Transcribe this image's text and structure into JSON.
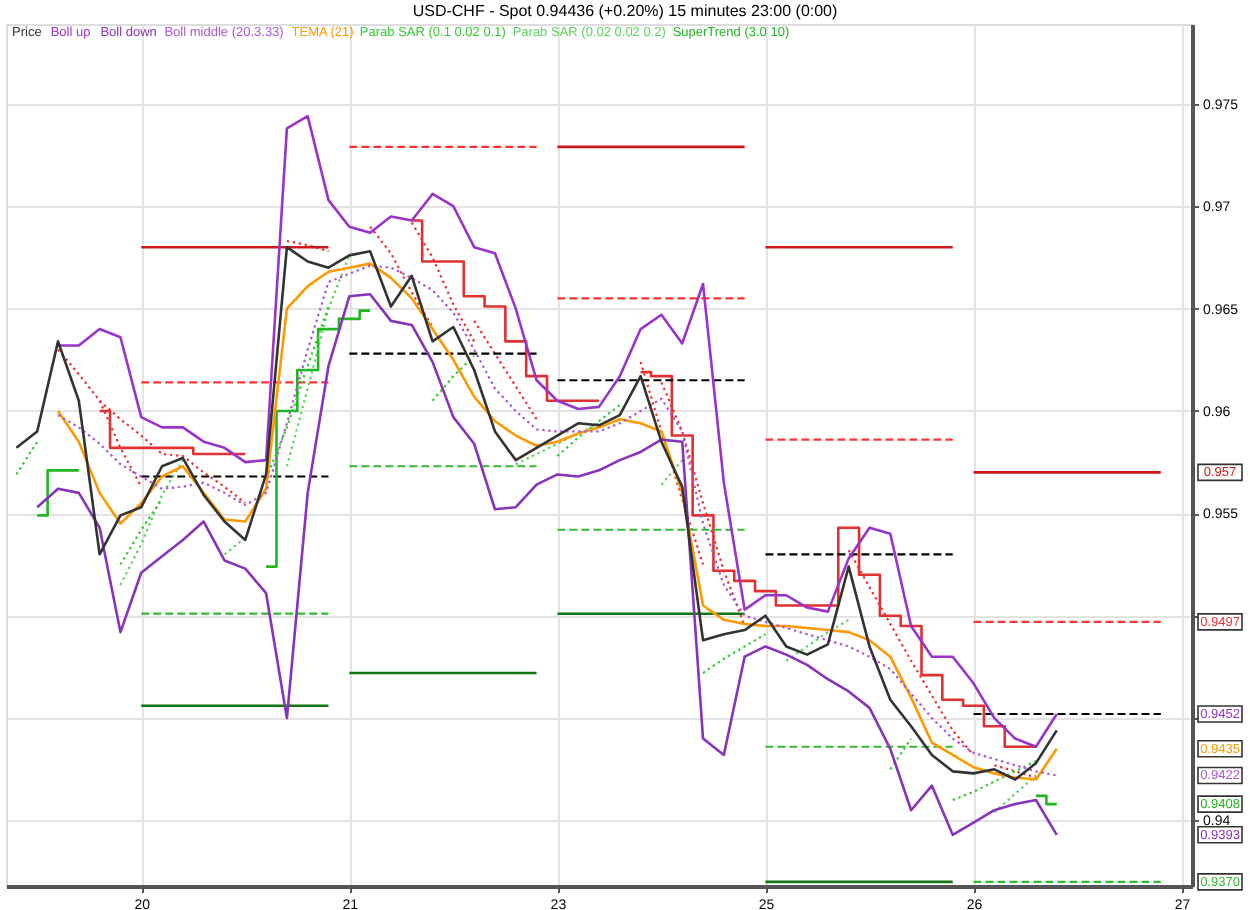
{
  "chart_data": {
    "type": "line",
    "title": "USD-CHF - Spot 0.94436 (+0.20%) 15 minutes 23:00 (0:00)",
    "categories": [
      null,
      null,
      null,
      null,
      null,
      null,
      "20",
      null,
      null,
      null,
      null,
      null,
      null,
      null,
      null,
      null,
      "21",
      null,
      null,
      null,
      null,
      null,
      null,
      null,
      null,
      null,
      "23",
      null,
      null,
      null,
      null,
      null,
      null,
      null,
      null,
      null,
      "25",
      null,
      null,
      null,
      null,
      null,
      null,
      null,
      null,
      null,
      "26",
      null,
      null,
      null,
      null,
      null,
      null,
      null,
      null,
      null,
      "27"
    ],
    "ylim": [
      0.9368,
      0.9789
    ],
    "yticks": [
      0.975,
      0.97,
      0.965,
      0.96,
      0.955,
      {
        "value": 0.95,
        "label": null
      },
      {
        "value": 0.945,
        "label": null
      },
      0.94
    ],
    "grid": true,
    "legend": "top left",
    "annotations": [
      {
        "text": "0.957",
        "y": 0.957
      },
      {
        "text": "0.9497",
        "y": 0.9497
      },
      {
        "text": "0.9452",
        "y": 0.9452
      },
      {
        "text": "0.9435",
        "y": 0.9435
      },
      {
        "text": "0.9422",
        "y": 0.9422
      },
      {
        "text": "0.9408",
        "y": 0.9408
      },
      {
        "text": "0.9393",
        "y": 0.9393
      },
      {
        "text": "0.9370",
        "y": 0.937
      }
    ],
    "series": [
      {
        "name": "Price",
        "color": "#333333",
        "line_style": "solid",
        "values": [
          0.9582,
          0.959,
          0.9634,
          0.9605,
          0.953,
          0.9549,
          0.9553,
          0.9573,
          0.9577,
          0.9559,
          0.9546,
          0.9537,
          0.9569,
          0.968,
          0.9673,
          0.967,
          0.9676,
          0.9678,
          0.9651,
          0.9666,
          0.9634,
          0.9641,
          0.962,
          0.959,
          0.9576,
          0.9582,
          0.9588,
          0.9594,
          0.9593,
          0.9598,
          0.9617,
          0.9585,
          0.9563,
          0.9488,
          0.9491,
          0.9493,
          0.95,
          0.9485,
          0.9481,
          0.9486,
          0.9524,
          0.9485,
          0.9459,
          0.9446,
          0.9432,
          0.9424,
          0.9423,
          0.9425,
          0.942,
          0.9428,
          0.9444,
          null,
          null,
          null,
          null,
          null,
          null
        ]
      },
      {
        "name": "Boll up",
        "color": "#9933cc",
        "line_style": "solid",
        "values": [
          null,
          null,
          0.9632,
          0.9632,
          0.964,
          0.9636,
          0.9597,
          0.9592,
          0.9592,
          0.9585,
          0.9582,
          0.9575,
          0.9576,
          0.9738,
          0.9744,
          0.9703,
          0.969,
          0.9687,
          0.9695,
          0.9693,
          0.9706,
          0.97,
          0.968,
          0.9677,
          0.965,
          0.9615,
          0.9605,
          0.9601,
          0.9602,
          0.9617,
          0.964,
          0.9647,
          0.9633,
          0.9662,
          0.9565,
          0.9503,
          0.951,
          0.951,
          0.9504,
          0.9502,
          0.9528,
          0.9543,
          0.954,
          0.9495,
          0.948,
          0.948,
          0.9467,
          0.945,
          0.944,
          0.9436,
          0.9452,
          null,
          null,
          null,
          null,
          null,
          null
        ]
      },
      {
        "name": "Boll down",
        "color": "#8833bb",
        "line_style": "solid",
        "values": [
          null,
          0.9553,
          0.9562,
          0.956,
          0.9543,
          0.9492,
          0.9521,
          0.9529,
          0.9537,
          0.9546,
          0.9527,
          0.9523,
          0.9511,
          0.945,
          0.956,
          0.9622,
          0.9656,
          0.9657,
          0.9644,
          0.9642,
          0.9624,
          0.9597,
          0.9584,
          0.9552,
          0.9553,
          0.9564,
          0.9569,
          0.9568,
          0.9571,
          0.9576,
          0.958,
          0.9586,
          0.9585,
          0.944,
          0.9432,
          0.948,
          0.9485,
          0.9481,
          0.9476,
          0.9469,
          0.9463,
          0.9455,
          0.9435,
          0.9405,
          0.9417,
          0.9393,
          0.9399,
          0.9405,
          0.9408,
          0.941,
          0.9393,
          null,
          null,
          null,
          null,
          null,
          null
        ]
      },
      {
        "name": "Boll middle (20.3.33)",
        "color": "#aa55dd",
        "line_style": "dotted",
        "values": [
          null,
          null,
          0.9598,
          0.9592,
          0.9584,
          0.9574,
          0.9568,
          0.9562,
          0.9563,
          0.9565,
          0.956,
          0.9554,
          0.956,
          0.9594,
          0.963,
          0.9663,
          0.9667,
          0.9671,
          0.967,
          0.9665,
          0.9659,
          0.9648,
          0.963,
          0.9611,
          0.96,
          0.9591,
          0.959,
          0.959,
          0.959,
          0.9594,
          0.96,
          0.9606,
          0.959,
          0.9545,
          0.9515,
          0.95,
          0.9497,
          0.9494,
          0.9491,
          0.9488,
          0.9485,
          0.948,
          0.9474,
          0.9462,
          0.945,
          0.944,
          0.9433,
          0.943,
          0.9427,
          0.9424,
          0.9422,
          null,
          null,
          null,
          null,
          null,
          null
        ]
      },
      {
        "name": "TEMA (21)",
        "color": "#ff9900",
        "line_style": "solid",
        "values": [
          null,
          null,
          0.96,
          0.9585,
          0.956,
          0.9545,
          0.9555,
          0.9568,
          0.9573,
          0.956,
          0.9547,
          0.9546,
          0.9562,
          0.965,
          0.9661,
          0.9668,
          0.967,
          0.9672,
          0.9665,
          0.9655,
          0.964,
          0.9625,
          0.9607,
          0.9595,
          0.9588,
          0.9583,
          0.9585,
          0.9589,
          0.9592,
          0.9596,
          0.9594,
          0.959,
          0.956,
          0.9505,
          0.9498,
          0.9496,
          0.9495,
          0.9495,
          0.9494,
          0.9493,
          0.9492,
          0.9488,
          0.948,
          0.946,
          0.9438,
          0.9432,
          0.9426,
          0.9423,
          0.9421,
          0.942,
          0.9435,
          null,
          null,
          null,
          null,
          null,
          null
        ]
      },
      {
        "name": "Parab SAR (0.1 0.02 0.1)",
        "color": "#33cc33",
        "line_style": "dotted",
        "values": [
          0.9569,
          0.9585,
          null,
          null,
          null,
          0.9525,
          0.9542,
          0.9557,
          null,
          null,
          null,
          null,
          0.9567,
          0.9592,
          0.9622,
          0.9651,
          null,
          null,
          null,
          null,
          0.9605,
          0.9617,
          0.9627,
          null,
          null,
          null,
          0.9578,
          0.9587,
          0.9595,
          0.9603,
          null,
          null,
          null,
          0.9472,
          0.9479,
          0.9485,
          0.9491,
          null,
          null,
          null,
          null,
          null,
          0.9425,
          0.944,
          null,
          0.941,
          0.9414,
          0.9419,
          0.9424,
          0.9429,
          null,
          null,
          null,
          null,
          null,
          null,
          null
        ]
      },
      {
        "name": "Parab SAR (0.02 0.02 0.2)",
        "color": "#5fd35f",
        "line_style": "dotted",
        "values": [
          null,
          null,
          null,
          null,
          null,
          0.9515,
          0.9535,
          0.9559,
          0.9576,
          null,
          0.953,
          0.9538,
          null,
          0.9573,
          0.9611,
          0.965,
          0.9676,
          null,
          null,
          null,
          null,
          null,
          null,
          null,
          0.9574,
          0.9579,
          0.9584,
          0.9589,
          0.9594,
          null,
          null,
          0.9564,
          0.9576,
          null,
          null,
          null,
          null,
          0.9478,
          0.9485,
          0.9492,
          0.9498,
          null,
          null,
          null,
          null,
          null,
          null,
          0.9404,
          0.9413,
          0.9422,
          null,
          null,
          null,
          null,
          null,
          null,
          null
        ]
      },
      {
        "name": "SuperTrend (3.0 10)",
        "type": "step",
        "color": "#22b522",
        "line_style": "solid",
        "values": [
          null,
          0.9549,
          0.9571,
          0.9571,
          null,
          null,
          null,
          null,
          null,
          null,
          null,
          null,
          0.9524,
          0.96,
          0.962,
          0.964,
          0.9645,
          0.9649,
          null,
          null,
          null,
          null,
          null,
          null,
          null,
          null,
          null,
          null,
          null,
          null,
          null,
          null,
          null,
          null,
          null,
          null,
          null,
          null,
          null,
          null,
          null,
          null,
          null,
          null,
          null,
          null,
          null,
          null,
          null,
          0.9412,
          0.9408,
          null,
          null,
          null,
          null,
          null,
          null
        ]
      },
      {
        "type": "step",
        "color": "#e03030",
        "line_style": "solid",
        "values": [
          null,
          null,
          null,
          null,
          0.96,
          0.9582,
          0.9582,
          0.9582,
          0.9582,
          0.9579,
          0.9579,
          0.9579,
          null,
          null,
          null,
          null,
          null,
          null,
          null,
          0.9693,
          0.9673,
          0.9673,
          0.9656,
          0.9651,
          0.9634,
          0.9617,
          0.9605,
          0.9605,
          0.9605,
          null,
          0.9619,
          0.9617,
          0.9588,
          0.9549,
          0.9522,
          0.9517,
          0.9512,
          0.9505,
          0.9505,
          0.9505,
          0.9543,
          0.952,
          0.95,
          0.9495,
          0.9471,
          0.9459,
          0.9456,
          0.9446,
          0.9436,
          0.9436,
          null,
          null,
          null,
          null,
          null,
          null,
          null
        ]
      },
      {
        "color": "#ee3333",
        "line_style": "dotted",
        "values": [
          null,
          null,
          0.963,
          0.9618,
          0.9605,
          0.9582,
          0.9563,
          null,
          null,
          null,
          null,
          null,
          null,
          null,
          null,
          null,
          null,
          0.969,
          0.9677,
          0.9658,
          0.9641,
          null,
          0.9644,
          0.9628,
          0.9612,
          0.9596,
          null,
          null,
          null,
          null,
          0.9624,
          0.959,
          0.9557,
          0.9525,
          null,
          null,
          null,
          null,
          null,
          null,
          0.9532,
          0.9514,
          0.9496,
          0.9478,
          0.9461,
          0.9444,
          0.9432,
          null,
          null,
          null,
          null,
          null,
          null,
          null,
          null,
          null,
          null
        ]
      },
      {
        "color": "#ee3333",
        "line_style": "dotted",
        "values": [
          null,
          null,
          null,
          null,
          0.9605,
          0.9596,
          0.9588,
          0.9579,
          0.9578,
          0.957,
          0.9563,
          0.9555,
          null,
          0.9683,
          0.9681,
          0.9678,
          null,
          null,
          null,
          0.9692,
          0.9675,
          0.9652,
          0.9634,
          null,
          null,
          null,
          null,
          null,
          null,
          null,
          null,
          0.9614,
          0.959,
          0.9555,
          0.9522,
          0.9495,
          null,
          null,
          null,
          null,
          null,
          null,
          null,
          null,
          null,
          null,
          null,
          0.9427,
          0.9424,
          0.9421,
          null,
          null,
          null,
          null,
          null,
          null,
          null
        ]
      },
      {
        "color": "#d01818",
        "line_style": "solid",
        "values": [
          null,
          null,
          null,
          null,
          null,
          null,
          0.968,
          0.968,
          0.968,
          0.968,
          0.968,
          0.968,
          0.968,
          0.968,
          0.968,
          0.968,
          null,
          null,
          null,
          null,
          null,
          null,
          null,
          null,
          null,
          null,
          0.9729,
          0.9729,
          0.9729,
          0.9729,
          0.9729,
          0.9729,
          0.9729,
          0.9729,
          0.9729,
          0.9729,
          null,
          null,
          null,
          null,
          null,
          null,
          null,
          null,
          null,
          null,
          0.957,
          0.957,
          0.957,
          0.957,
          0.957,
          0.957,
          0.957,
          0.957,
          0.957,
          0.957,
          null
        ]
      },
      {
        "color": "#d01818",
        "line_style": "solid",
        "values": [
          null,
          null,
          null,
          null,
          null,
          null,
          null,
          null,
          null,
          null,
          null,
          null,
          null,
          null,
          null,
          null,
          null,
          null,
          null,
          null,
          null,
          null,
          null,
          null,
          null,
          null,
          null,
          null,
          null,
          null,
          null,
          null,
          null,
          null,
          null,
          null,
          0.968,
          0.968,
          0.968,
          0.968,
          0.968,
          0.968,
          0.968,
          0.968,
          0.968,
          0.968,
          null,
          null,
          null,
          null,
          null,
          null,
          null,
          null,
          null,
          null,
          null
        ]
      },
      {
        "color": "#ff3333",
        "line_style": "dashed",
        "values": [
          null,
          null,
          null,
          null,
          null,
          null,
          0.9614,
          0.9614,
          0.9614,
          0.9614,
          0.9614,
          0.9614,
          0.9614,
          0.9614,
          0.9614,
          0.9614,
          null,
          null,
          null,
          null,
          null,
          null,
          null,
          null,
          null,
          null,
          0.9655,
          0.9655,
          0.9655,
          0.9655,
          0.9655,
          0.9655,
          0.9655,
          0.9655,
          0.9655,
          0.9655,
          null,
          null,
          null,
          null,
          null,
          null,
          null,
          null,
          null,
          null,
          0.9497,
          0.9497,
          0.9497,
          0.9497,
          0.9497,
          0.9497,
          0.9497,
          0.9497,
          0.9497,
          0.9497,
          null
        ]
      },
      {
        "color": "#ff3333",
        "line_style": "dashed",
        "values": [
          null,
          null,
          null,
          null,
          null,
          null,
          null,
          null,
          null,
          null,
          null,
          null,
          null,
          null,
          null,
          null,
          0.9729,
          0.9729,
          0.9729,
          0.9729,
          0.9729,
          0.9729,
          0.9729,
          0.9729,
          0.9729,
          0.9729,
          null,
          null,
          null,
          null,
          null,
          null,
          null,
          null,
          null,
          null,
          0.9586,
          0.9586,
          0.9586,
          0.9586,
          0.9586,
          0.9586,
          0.9586,
          0.9586,
          0.9586,
          0.9586,
          null,
          null,
          null,
          null,
          null,
          null,
          null,
          null,
          null,
          null,
          null
        ]
      },
      {
        "color": "#000000",
        "line_style": "dashed",
        "values": [
          null,
          null,
          null,
          null,
          null,
          null,
          0.9568,
          0.9568,
          0.9568,
          0.9568,
          0.9568,
          0.9568,
          0.9568,
          0.9568,
          0.9568,
          0.9568,
          null,
          null,
          null,
          null,
          null,
          null,
          null,
          null,
          null,
          null,
          0.9615,
          0.9615,
          0.9615,
          0.9615,
          0.9615,
          0.9615,
          0.9615,
          0.9615,
          0.9615,
          0.9615,
          null,
          null,
          null,
          null,
          null,
          null,
          null,
          null,
          null,
          null,
          0.9452,
          0.9452,
          0.9452,
          0.9452,
          0.9452,
          0.9452,
          0.9452,
          0.9452,
          0.9452,
          0.9452,
          null
        ]
      },
      {
        "color": "#000000",
        "line_style": "dashed",
        "values": [
          null,
          null,
          null,
          null,
          null,
          null,
          null,
          null,
          null,
          null,
          null,
          null,
          null,
          null,
          null,
          null,
          0.9628,
          0.9628,
          0.9628,
          0.9628,
          0.9628,
          0.9628,
          0.9628,
          0.9628,
          0.9628,
          0.9628,
          null,
          null,
          null,
          null,
          null,
          null,
          null,
          null,
          null,
          null,
          0.953,
          0.953,
          0.953,
          0.953,
          0.953,
          0.953,
          0.953,
          0.953,
          0.953,
          0.953,
          null,
          null,
          null,
          null,
          null,
          null,
          null,
          null,
          null,
          null,
          null
        ]
      },
      {
        "color": "#33bb33",
        "line_style": "dashed",
        "values": [
          null,
          null,
          null,
          null,
          null,
          null,
          0.9501,
          0.9501,
          0.9501,
          0.9501,
          0.9501,
          0.9501,
          0.9501,
          0.9501,
          0.9501,
          0.9501,
          null,
          null,
          null,
          null,
          null,
          null,
          null,
          null,
          null,
          null,
          0.9542,
          0.9542,
          0.9542,
          0.9542,
          0.9542,
          0.9542,
          0.9542,
          0.9542,
          0.9542,
          0.9542,
          null,
          null,
          null,
          null,
          null,
          null,
          null,
          null,
          null,
          null,
          0.937,
          0.937,
          0.937,
          0.937,
          0.937,
          0.937,
          0.937,
          0.937,
          0.937,
          0.937,
          null
        ]
      },
      {
        "color": "#33bb33",
        "line_style": "dashed",
        "values": [
          null,
          null,
          null,
          null,
          null,
          null,
          null,
          null,
          null,
          null,
          null,
          null,
          null,
          null,
          null,
          null,
          0.9573,
          0.9573,
          0.9573,
          0.9573,
          0.9573,
          0.9573,
          0.9573,
          0.9573,
          0.9573,
          0.9573,
          null,
          null,
          null,
          null,
          null,
          null,
          null,
          null,
          null,
          null,
          0.9436,
          0.9436,
          0.9436,
          0.9436,
          0.9436,
          0.9436,
          0.9436,
          0.9436,
          0.9436,
          0.9436,
          null,
          null,
          null,
          null,
          null,
          null,
          null,
          null,
          null,
          null,
          null
        ]
      },
      {
        "color": "#117711",
        "line_style": "solid",
        "values": [
          null,
          null,
          null,
          null,
          null,
          null,
          0.9456,
          0.9456,
          0.9456,
          0.9456,
          0.9456,
          0.9456,
          0.9456,
          0.9456,
          0.9456,
          0.9456,
          null,
          null,
          null,
          null,
          null,
          null,
          null,
          null,
          null,
          null,
          0.9501,
          0.9501,
          0.9501,
          0.9501,
          0.9501,
          0.9501,
          0.9501,
          0.9501,
          0.9501,
          0.9501,
          null,
          null,
          null,
          null,
          null,
          null,
          null,
          null,
          null,
          null,
          null,
          null,
          null,
          null,
          null,
          null,
          null,
          null,
          null,
          null,
          null
        ]
      },
      {
        "color": "#117711",
        "line_style": "solid",
        "values": [
          null,
          null,
          null,
          null,
          null,
          null,
          null,
          null,
          null,
          null,
          null,
          null,
          null,
          null,
          null,
          null,
          0.9472,
          0.9472,
          0.9472,
          0.9472,
          0.9472,
          0.9472,
          0.9472,
          0.9472,
          0.9472,
          0.9472,
          null,
          null,
          null,
          null,
          null,
          null,
          null,
          null,
          null,
          null,
          0.937,
          0.937,
          0.937,
          0.937,
          0.937,
          0.937,
          0.937,
          0.937,
          0.937,
          0.937,
          null,
          null,
          null,
          null,
          null,
          null,
          null,
          null,
          null,
          null,
          null
        ]
      }
    ]
  }
}
